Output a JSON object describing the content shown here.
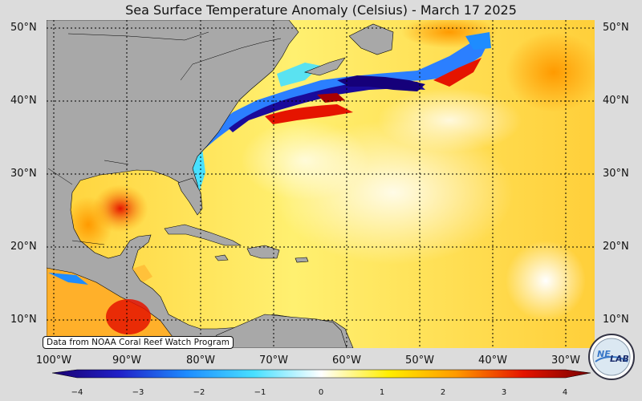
{
  "title": "Sea Surface Temperature Anomaly (Celsius) - March 17 2025",
  "credit": "Data from NOAA Coral Reef Watch Program",
  "lat_labels": [
    "50°N",
    "40°N",
    "30°N",
    "20°N",
    "10°N"
  ],
  "lon_labels": [
    "100°W",
    "90°W",
    "80°W",
    "70°W",
    "60°W",
    "50°W",
    "40°W",
    "30°W"
  ],
  "colorbar": {
    "min": -4,
    "max": 4,
    "ticks": [
      "−4",
      "−3",
      "−2",
      "−1",
      "0",
      "1",
      "2",
      "3",
      "4"
    ],
    "colors": [
      "#1a0070",
      "#2020c8",
      "#1e8cff",
      "#48e0ff",
      "#ffffff",
      "#ffee00",
      "#ff9a00",
      "#e51400",
      "#780000"
    ]
  },
  "logo": {
    "text_1": "NE",
    "text_2": "LAB"
  },
  "land_color": "#a8a8a8",
  "frame_color": "#dcdcdc"
}
